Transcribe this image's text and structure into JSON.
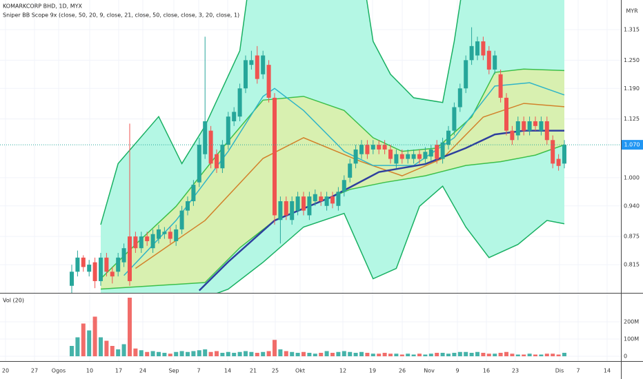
{
  "chart_data": {
    "type": "candlestick",
    "title": "KOMARKCORP BHD, 1D, MYX",
    "subtitle": "Sniper BB Scope 9x (close, 50, 20, 9, close, 21, close, 50, close, close, 3, 20, close, 1)",
    "currency": "MYR",
    "up_color": "#26a69a",
    "down_color": "#ef5350",
    "ylim": [
      0.755,
      1.378
    ],
    "yticks": [
      1.315,
      {
        "value": 1.25,
        "label": "1.250"
      },
      {
        "value": 1.19,
        "label": "1.190"
      },
      1.125,
      {
        "value": 1.0,
        "label": "1.000"
      },
      {
        "value": 0.94,
        "label": "0.940"
      },
      0.875,
      0.815
    ],
    "last_price": {
      "value": 1.07,
      "label": "1.070"
    },
    "open": [
      0.77,
      0.8,
      0.83,
      0.8,
      0.82,
      0.78,
      0.83,
      0.8,
      0.8,
      0.82,
      0.875,
      0.875,
      0.85,
      0.875,
      0.85,
      0.87,
      0.88,
      0.885,
      0.865,
      0.89,
      0.93,
      0.95,
      0.99,
      1.05,
      1.1,
      1.05,
      1.02,
      1.07,
      1.12,
      1.13,
      1.19,
      1.24,
      1.26,
      1.22,
      1.24,
      1.17,
      0.91,
      0.95,
      0.91,
      0.93,
      0.96,
      0.92,
      0.95,
      0.96,
      0.94,
      0.96,
      0.94,
      0.97,
      1.0,
      1.03,
      1.05,
      1.07,
      1.06,
      1.07,
      1.07,
      1.06,
      1.03,
      1.05,
      1.04,
      1.04,
      1.05,
      1.04,
      1.045,
      1.07,
      1.04,
      1.07,
      1.1,
      1.15,
      1.19,
      1.25,
      1.26,
      1.29,
      1.27,
      1.23,
      1.22,
      1.17,
      1.1,
      1.09,
      1.12,
      1.1,
      1.12,
      1.1,
      1.12,
      1.08,
      1.04,
      1.03
    ],
    "high": [
      0.815,
      0.845,
      0.835,
      0.825,
      0.83,
      0.84,
      0.84,
      0.81,
      0.84,
      0.86,
      1.115,
      0.885,
      0.885,
      0.885,
      0.89,
      0.9,
      0.895,
      0.895,
      0.9,
      0.94,
      0.96,
      0.995,
      1.085,
      1.3,
      1.11,
      1.06,
      1.08,
      1.14,
      1.15,
      1.2,
      1.26,
      1.27,
      1.28,
      1.27,
      1.25,
      1.18,
      0.96,
      0.96,
      0.96,
      0.97,
      0.97,
      0.97,
      0.975,
      0.97,
      0.97,
      0.97,
      0.98,
      1.005,
      1.04,
      1.07,
      1.08,
      1.08,
      1.08,
      1.08,
      1.08,
      1.07,
      1.06,
      1.06,
      1.06,
      1.06,
      1.06,
      1.065,
      1.07,
      1.08,
      1.085,
      1.11,
      1.16,
      1.2,
      1.26,
      1.32,
      1.3,
      1.3,
      1.28,
      1.27,
      1.23,
      1.18,
      1.11,
      1.13,
      1.13,
      1.13,
      1.13,
      1.13,
      1.13,
      1.09,
      1.05,
      1.08
    ],
    "low": [
      0.755,
      0.79,
      0.8,
      0.79,
      0.765,
      0.77,
      0.79,
      0.775,
      0.79,
      0.81,
      0.77,
      0.84,
      0.84,
      0.855,
      0.84,
      0.86,
      0.87,
      0.86,
      0.855,
      0.88,
      0.92,
      0.94,
      0.98,
      1.04,
      1.02,
      1.01,
      1.01,
      1.06,
      1.11,
      1.12,
      1.18,
      1.23,
      1.2,
      1.21,
      1.16,
      0.9,
      0.86,
      0.91,
      0.9,
      0.92,
      0.92,
      0.91,
      0.94,
      0.94,
      0.93,
      0.935,
      0.93,
      0.96,
      0.99,
      1.02,
      1.04,
      1.04,
      1.05,
      1.05,
      1.05,
      1.03,
      1.02,
      1.03,
      1.03,
      1.03,
      1.03,
      1.03,
      1.035,
      1.03,
      1.03,
      1.06,
      1.09,
      1.14,
      1.18,
      1.24,
      1.25,
      1.25,
      1.22,
      1.22,
      1.16,
      1.09,
      1.07,
      1.08,
      1.09,
      1.09,
      1.1,
      1.09,
      1.07,
      1.02,
      1.015,
      1.02
    ],
    "close": [
      0.8,
      0.83,
      0.81,
      0.815,
      0.78,
      0.83,
      0.8,
      0.79,
      0.83,
      0.85,
      0.78,
      0.85,
      0.875,
      0.865,
      0.88,
      0.89,
      0.885,
      0.87,
      0.89,
      0.93,
      0.95,
      0.985,
      1.07,
      1.12,
      1.03,
      1.02,
      1.07,
      1.13,
      1.14,
      1.19,
      1.25,
      1.25,
      1.21,
      1.26,
      1.17,
      0.92,
      0.95,
      0.92,
      0.95,
      0.96,
      0.93,
      0.96,
      0.965,
      0.95,
      0.96,
      0.945,
      0.97,
      0.995,
      1.03,
      1.06,
      1.07,
      1.05,
      1.07,
      1.06,
      1.06,
      1.04,
      1.05,
      1.04,
      1.05,
      1.05,
      1.04,
      1.055,
      1.06,
      1.04,
      1.075,
      1.1,
      1.15,
      1.19,
      1.25,
      1.28,
      1.29,
      1.26,
      1.23,
      1.26,
      1.17,
      1.1,
      1.08,
      1.12,
      1.1,
      1.12,
      1.11,
      1.12,
      1.08,
      1.03,
      1.025,
      1.07
    ],
    "overlays": [
      {
        "color": "#18b062",
        "x": [
          5,
          8,
          15,
          19,
          23,
          29,
          31,
          50,
          52,
          55,
          59,
          64,
          66,
          68,
          85
        ],
        "values": [
          0.9,
          1.03,
          1.13,
          1.03,
          1.11,
          1.27,
          1.45,
          1.45,
          1.29,
          1.22,
          1.17,
          1.16,
          1.29,
          1.45,
          1.45
        ]
      },
      {
        "color": "#18b062",
        "x": [
          5,
          22,
          27,
          33,
          40,
          47,
          52,
          56,
          60,
          64,
          68,
          72,
          77,
          82,
          85
        ],
        "values": [
          0.74,
          0.74,
          0.763,
          0.82,
          0.895,
          0.924,
          0.785,
          0.807,
          0.939,
          0.982,
          0.895,
          0.83,
          0.858,
          0.909,
          0.902
        ]
      },
      {
        "color": "#3cbf4a",
        "x": [
          5,
          11,
          18,
          26,
          33,
          40,
          47,
          52,
          57,
          63,
          69,
          73,
          78,
          85
        ],
        "values": [
          0.785,
          0.858,
          0.939,
          1.063,
          1.165,
          1.173,
          1.143,
          1.085,
          1.056,
          1.063,
          1.129,
          1.224,
          1.231,
          1.228
        ]
      },
      {
        "color": "#3cbf4a",
        "x": [
          5,
          23,
          29,
          35,
          41,
          48,
          54,
          61,
          68,
          74,
          80,
          85
        ],
        "values": [
          0.763,
          0.777,
          0.851,
          0.909,
          0.939,
          0.975,
          0.99,
          1.004,
          1.026,
          1.034,
          1.048,
          1.07
        ]
      },
      {
        "color": "#d2812a",
        "x": [
          11,
          23,
          33,
          40,
          50,
          57,
          64,
          71,
          78,
          85
        ],
        "values": [
          0.807,
          0.909,
          1.041,
          1.085,
          1.034,
          1.004,
          1.041,
          1.129,
          1.158,
          1.151
        ]
      },
      {
        "color": "#2fb4c8",
        "x": [
          9,
          18,
          27,
          33,
          35,
          40,
          47,
          52,
          59,
          66,
          73,
          79,
          85
        ],
        "values": [
          0.792,
          0.909,
          1.056,
          1.173,
          1.19,
          1.143,
          1.056,
          1.026,
          1.026,
          1.085,
          1.195,
          1.202,
          1.176
        ]
      },
      {
        "color": "#2e3f9e",
        "x": [
          22,
          27,
          35,
          45,
          53,
          61,
          68,
          73,
          78,
          85
        ],
        "values": [
          0.76,
          0.821,
          0.909,
          0.96,
          1.012,
          1.029,
          1.063,
          1.092,
          1.1,
          1.1
        ]
      }
    ],
    "volume": {
      "title": "Vol (20)",
      "ylim": [
        0,
        356000000
      ],
      "yticks": [
        {
          "value": 200000000,
          "label": "200M"
        },
        {
          "value": 100000000,
          "label": "100M"
        },
        0
      ],
      "values": [
        60000000,
        110000000,
        190000000,
        150000000,
        230000000,
        110000000,
        90000000,
        60000000,
        40000000,
        70000000,
        340000000,
        45000000,
        35000000,
        25000000,
        30000000,
        25000000,
        20000000,
        15000000,
        25000000,
        30000000,
        25000000,
        30000000,
        35000000,
        40000000,
        25000000,
        30000000,
        20000000,
        25000000,
        20000000,
        25000000,
        30000000,
        25000000,
        20000000,
        25000000,
        30000000,
        95000000,
        40000000,
        30000000,
        25000000,
        20000000,
        25000000,
        20000000,
        15000000,
        20000000,
        30000000,
        20000000,
        25000000,
        30000000,
        25000000,
        20000000,
        25000000,
        20000000,
        15000000,
        15000000,
        20000000,
        15000000,
        15000000,
        10000000,
        15000000,
        10000000,
        15000000,
        10000000,
        15000000,
        20000000,
        20000000,
        15000000,
        20000000,
        25000000,
        25000000,
        20000000,
        25000000,
        20000000,
        15000000,
        15000000,
        20000000,
        25000000,
        15000000,
        10000000,
        10000000,
        15000000,
        10000000,
        10000000,
        15000000,
        15000000,
        10000000,
        20000000
      ]
    },
    "x_labels": [
      "20",
      "27",
      "Ogos",
      "10",
      "17",
      "24",
      "Sep",
      "7",
      "14",
      "21",
      "25",
      "Okt",
      "12",
      "19",
      "26",
      "Nov",
      "9",
      "16",
      "23",
      "Dis",
      "7",
      "14"
    ]
  }
}
